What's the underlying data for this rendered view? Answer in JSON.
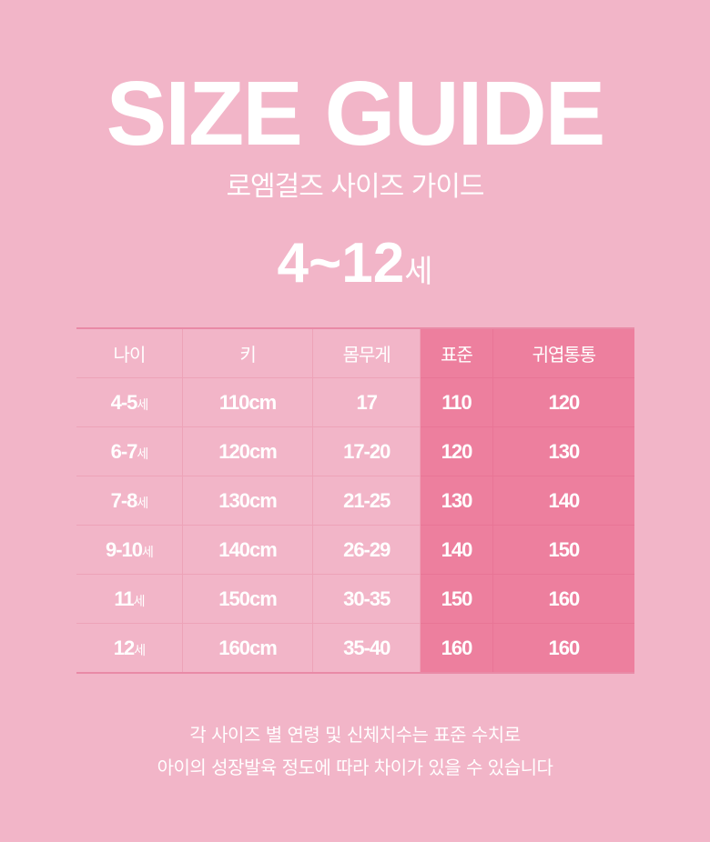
{
  "title": "SIZE GUIDE",
  "subtitle": "로엠걸즈 사이즈 가이드",
  "age_range": {
    "value": "4~12",
    "unit": "세"
  },
  "colors": {
    "background": "#f2b5c8",
    "highlight": "#ed7f9e"
  },
  "table": {
    "headers": [
      "나이",
      "키",
      "몸무게",
      "표준",
      "귀엽통통"
    ],
    "highlighted_columns": [
      "표준",
      "귀엽통통"
    ],
    "rows": [
      {
        "age": "4-5",
        "unit": "세",
        "height": "110cm",
        "weight": "17",
        "standard": "110",
        "chubby": "120"
      },
      {
        "age": "6-7",
        "unit": "세",
        "height": "120cm",
        "weight": "17-20",
        "standard": "120",
        "chubby": "130"
      },
      {
        "age": "7-8",
        "unit": "세",
        "height": "130cm",
        "weight": "21-25",
        "standard": "130",
        "chubby": "140"
      },
      {
        "age": "9-10",
        "unit": "세",
        "height": "140cm",
        "weight": "26-29",
        "standard": "140",
        "chubby": "150"
      },
      {
        "age": "11",
        "unit": "세",
        "height": "150cm",
        "weight": "30-35",
        "standard": "150",
        "chubby": "160"
      },
      {
        "age": "12",
        "unit": "세",
        "height": "160cm",
        "weight": "35-40",
        "standard": "160",
        "chubby": "160"
      }
    ]
  },
  "note": [
    "각 사이즈 별 연령 및 신체치수는 표준 수치로",
    "아이의 성장발육 정도에 따라 차이가 있을 수 있습니다"
  ]
}
